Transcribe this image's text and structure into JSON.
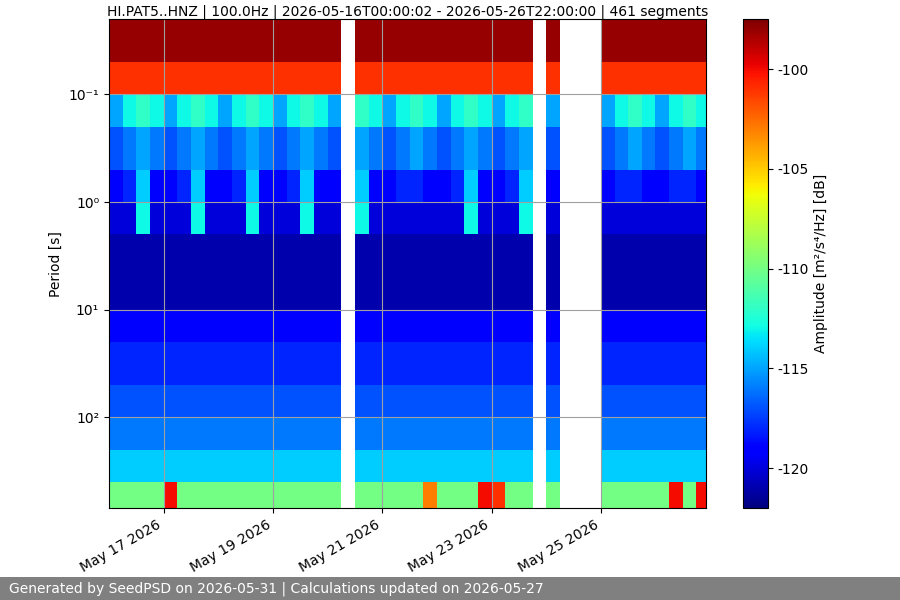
{
  "chart_data": {
    "type": "heatmap",
    "title": "HI.PAT5..HNZ | 100.0Hz | 2026-05-16T00:00:02 - 2026-05-26T22:00:00 | 461 segments",
    "y_label": "Period [s]",
    "footer": "Generated by SeedPSD on 2026-05-31 | Calculations updated on 2026-05-27",
    "color": "jet",
    "log": "y",
    "grid": true,
    "xlim": [
      "2026-05-16T00:00",
      "2026-05-26T22:00"
    ],
    "xticks": [
      {
        "value": "2026-05-17",
        "label": "May 17 2026"
      },
      {
        "value": "2026-05-19",
        "label": "May 19 2026"
      },
      {
        "value": "2026-05-21",
        "label": "May 21 2026"
      },
      {
        "value": "2026-05-23",
        "label": "May 23 2026"
      },
      {
        "value": "2026-05-25",
        "label": "May 25 2026"
      }
    ],
    "ylim": [
      700,
      0.02
    ],
    "yticks": [
      {
        "value": 0.1,
        "label": "10⁻¹"
      },
      {
        "value": 1,
        "label": "10⁰"
      },
      {
        "value": 10,
        "label": "10¹"
      },
      {
        "value": 100,
        "label": "10²"
      }
    ],
    "colorbar": {
      "label": "Amplitude [m²/s⁴/Hz] [dB]",
      "range": [
        -122,
        -97.5
      ],
      "ticks": [
        -120,
        -115,
        -110,
        -105,
        -100
      ]
    },
    "x_edges": [
      "2026-05-16T00:00",
      "2026-05-16T06:00",
      "2026-05-16T12:00",
      "2026-05-16T18:00",
      "2026-05-17T00:00",
      "2026-05-17T06:00",
      "2026-05-17T12:00",
      "2026-05-17T18:00",
      "2026-05-18T00:00",
      "2026-05-18T06:00",
      "2026-05-18T12:00",
      "2026-05-18T18:00",
      "2026-05-19T00:00",
      "2026-05-19T06:00",
      "2026-05-19T12:00",
      "2026-05-19T18:00",
      "2026-05-20T00:00",
      "2026-05-20T06:00",
      "2026-05-20T12:00",
      "2026-05-20T18:00",
      "2026-05-21T00:00",
      "2026-05-21T06:00",
      "2026-05-21T12:00",
      "2026-05-21T18:00",
      "2026-05-22T00:00",
      "2026-05-22T06:00",
      "2026-05-22T12:00",
      "2026-05-22T18:00",
      "2026-05-23T00:00",
      "2026-05-23T06:00",
      "2026-05-23T12:00",
      "2026-05-23T18:00",
      "2026-05-24T00:00",
      "2026-05-24T06:00",
      "2026-05-24T12:00",
      "2026-05-24T18:00",
      "2026-05-25T00:00",
      "2026-05-25T06:00",
      "2026-05-25T12:00",
      "2026-05-25T18:00",
      "2026-05-26T00:00",
      "2026-05-26T06:00",
      "2026-05-26T12:00",
      "2026-05-26T18:00",
      "2026-05-26T22:00"
    ],
    "period_edges": [
      0.02,
      0.05,
      0.1,
      0.2,
      0.5,
      1,
      2,
      5,
      10,
      20,
      50,
      100,
      200,
      400,
      700
    ],
    "cells": [
      [
        -98,
        -98,
        -98,
        -98,
        -98,
        -98,
        -98,
        -98,
        -98,
        -98,
        -98,
        -98,
        -98,
        -98,
        -98,
        -98,
        -98,
        null,
        -98,
        -98,
        -98,
        -98,
        -98,
        -98,
        -98,
        -98,
        -98,
        -98,
        -98,
        -98,
        -98,
        null,
        -98,
        null,
        null,
        null,
        -98,
        -98,
        -98,
        -98,
        -98,
        -98,
        -98,
        -98
      ],
      [
        -101,
        -101,
        -101,
        -101,
        -101,
        -101,
        -101,
        -101,
        -101,
        -101,
        -101,
        -101,
        -101,
        -101,
        -101,
        -101,
        -101,
        null,
        -101,
        -101,
        -101,
        -101,
        -101,
        -101,
        -101,
        -101,
        -101,
        -101,
        -101,
        -101,
        -101,
        null,
        -101,
        null,
        null,
        null,
        -101,
        -101,
        -101,
        -101,
        -101,
        -101,
        -101,
        -101
      ],
      [
        -115,
        -113,
        -112,
        -113,
        -115,
        -113,
        -112,
        -113,
        -115,
        -113,
        -112,
        -113,
        -115,
        -113,
        -112,
        -113,
        -115,
        null,
        -112,
        -113,
        -115,
        -113,
        -112,
        -113,
        -115,
        -113,
        -112,
        -113,
        -115,
        -113,
        -112,
        null,
        -115,
        null,
        null,
        null,
        -115,
        -113,
        -112,
        -113,
        -115,
        -113,
        -112,
        -113
      ],
      [
        -117,
        -116,
        -115,
        -116,
        -117,
        -116,
        -115,
        -116,
        -117,
        -116,
        -115,
        -116,
        -117,
        -116,
        -115,
        -116,
        -117,
        null,
        -115,
        -116,
        -117,
        -116,
        -115,
        -116,
        -117,
        -116,
        -115,
        -116,
        -117,
        -116,
        -115,
        null,
        -117,
        null,
        null,
        null,
        -117,
        -116,
        -115,
        -116,
        -117,
        -116,
        -115,
        -116
      ],
      [
        -119,
        -118,
        -114,
        -119,
        -119,
        -118,
        -114,
        -119,
        -119,
        -118,
        -114,
        -119,
        -119,
        -118,
        -114,
        -119,
        -119,
        null,
        -114,
        -119,
        -119,
        -118,
        -118,
        -119,
        -119,
        -118,
        -114,
        -119,
        -119,
        -118,
        -114,
        null,
        -119,
        null,
        null,
        null,
        -119,
        -118,
        -118,
        -119,
        -119,
        -118,
        -118,
        -119
      ],
      [
        -120,
        -120,
        -113,
        -120,
        -120,
        -120,
        -113,
        -120,
        -120,
        -120,
        -113,
        -120,
        -120,
        -120,
        -113,
        -120,
        -120,
        null,
        -113,
        -120,
        -120,
        -120,
        -120,
        -120,
        -120,
        -120,
        -113,
        -120,
        -120,
        -120,
        -113,
        null,
        -120,
        null,
        null,
        null,
        -120,
        -120,
        -120,
        -120,
        -120,
        -120,
        -120,
        -120
      ],
      [
        -121,
        -121,
        -121,
        -121,
        -121,
        -121,
        -121,
        -121,
        -121,
        -121,
        -121,
        -121,
        -121,
        -121,
        -121,
        -121,
        -121,
        null,
        -121,
        -121,
        -121,
        -121,
        -121,
        -121,
        -121,
        -121,
        -121,
        -121,
        -121,
        -121,
        -121,
        null,
        -121,
        null,
        null,
        null,
        -121,
        -121,
        -121,
        -121,
        -121,
        -121,
        -121,
        -121
      ],
      [
        -121,
        -121,
        -121,
        -121,
        -121,
        -121,
        -121,
        -121,
        -121,
        -121,
        -121,
        -121,
        -121,
        -121,
        -121,
        -121,
        -121,
        null,
        -121,
        -121,
        -121,
        -121,
        -121,
        -121,
        -121,
        -121,
        -121,
        -121,
        -121,
        -121,
        -121,
        null,
        -121,
        null,
        null,
        null,
        -121,
        -121,
        -121,
        -121,
        -121,
        -121,
        -121,
        -121
      ],
      [
        -119,
        -119,
        -119,
        -119,
        -119,
        -119,
        -119,
        -119,
        -119,
        -119,
        -119,
        -119,
        -119,
        -119,
        -119,
        -119,
        -119,
        null,
        -119,
        -119,
        -119,
        -119,
        -119,
        -119,
        -119,
        -119,
        -119,
        -119,
        -119,
        -119,
        -119,
        null,
        -119,
        null,
        null,
        null,
        -119,
        -119,
        -119,
        -119,
        -119,
        -119,
        -119,
        -119
      ],
      [
        -118,
        -118,
        -118,
        -118,
        -118,
        -118,
        -118,
        -118,
        -118,
        -118,
        -118,
        -118,
        -118,
        -118,
        -118,
        -118,
        -118,
        null,
        -118,
        -118,
        -118,
        -118,
        -118,
        -118,
        -118,
        -118,
        -118,
        -118,
        -118,
        -118,
        -118,
        null,
        -118,
        null,
        null,
        null,
        -118,
        -118,
        -118,
        -118,
        -118,
        -118,
        -118,
        -118
      ],
      [
        -117,
        -117,
        -117,
        -117,
        -117,
        -117,
        -117,
        -117,
        -117,
        -117,
        -117,
        -117,
        -117,
        -117,
        -117,
        -117,
        -117,
        null,
        -117,
        -117,
        -117,
        -117,
        -117,
        -117,
        -117,
        -117,
        -117,
        -117,
        -117,
        -117,
        -117,
        null,
        -117,
        null,
        null,
        null,
        -117,
        -117,
        -117,
        -117,
        -117,
        -117,
        -117,
        -117
      ],
      [
        -116,
        -116,
        -116,
        -116,
        -116,
        -116,
        -116,
        -116,
        -116,
        -116,
        -116,
        -116,
        -116,
        -116,
        -116,
        -116,
        -116,
        null,
        -116,
        -116,
        -116,
        -116,
        -116,
        -116,
        -116,
        -116,
        -116,
        -116,
        -116,
        -116,
        -116,
        null,
        -116,
        null,
        null,
        null,
        -116,
        -116,
        -116,
        -116,
        -116,
        -116,
        -116,
        -116
      ],
      [
        -114,
        -114,
        -114,
        -114,
        -114,
        -114,
        -114,
        -114,
        -114,
        -114,
        -114,
        -114,
        -114,
        -114,
        -114,
        -114,
        -114,
        null,
        -114,
        -114,
        -114,
        -114,
        -114,
        -114,
        -114,
        -114,
        -114,
        -114,
        -114,
        -114,
        -114,
        null,
        -114,
        null,
        null,
        null,
        -114,
        -114,
        -114,
        -114,
        -114,
        -114,
        -114,
        -114
      ],
      [
        -110,
        -110,
        -110,
        -110,
        -100,
        -110,
        -110,
        -110,
        -110,
        -110,
        -110,
        -110,
        -110,
        -110,
        -110,
        -110,
        -110,
        null,
        -110,
        -110,
        -110,
        -110,
        -110,
        -103,
        -110,
        -110,
        -110,
        -100,
        -101,
        -110,
        -110,
        null,
        -110,
        null,
        null,
        null,
        -110,
        -110,
        -110,
        -110,
        -110,
        -100,
        -110,
        -100
      ]
    ]
  }
}
